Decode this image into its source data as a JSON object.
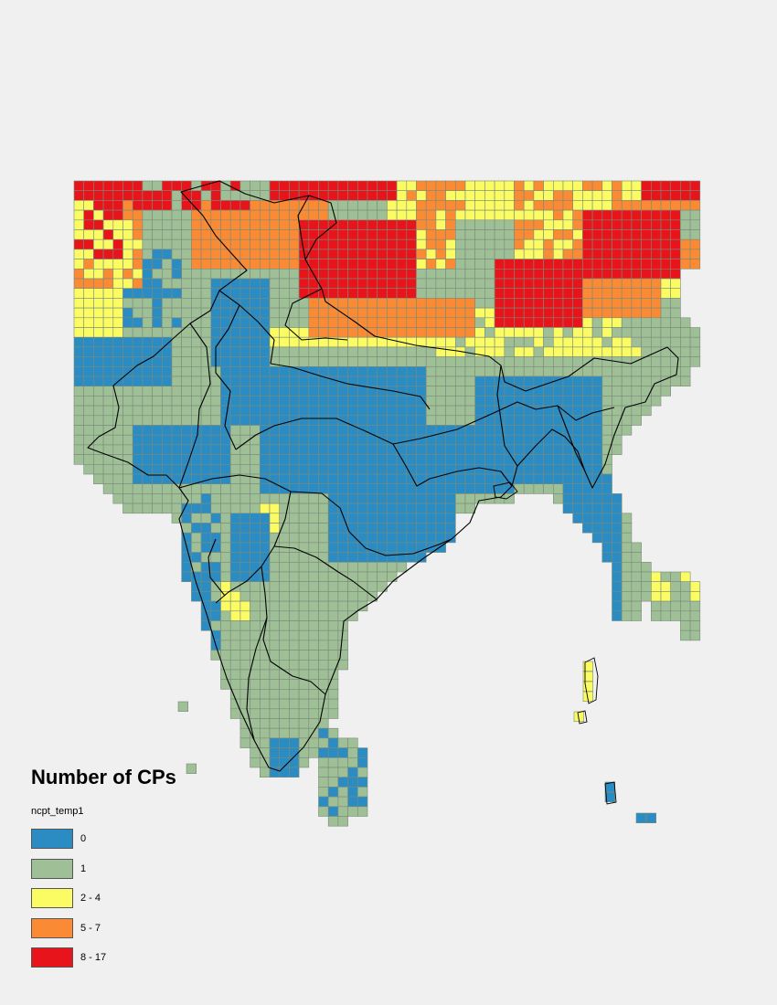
{
  "legend": {
    "title": "Number of CPs",
    "field": "ncpt_temp1",
    "classes": [
      {
        "label": "0",
        "color": "#2b8cc4"
      },
      {
        "label": "1",
        "color": "#9fbf97"
      },
      {
        "label": "2 - 4",
        "color": "#fbfb63"
      },
      {
        "label": "5 - 7",
        "color": "#fa8b34"
      },
      {
        "label": "8 - 17",
        "color": "#e8141b"
      }
    ]
  },
  "colors": {
    "background": "#f0f0f0",
    "grid_stroke": "#7a8a7a",
    "boundary": "#000000"
  },
  "map": {
    "subject": "South Asia gridded map of number of CPs per cell",
    "dominant_classes": {
      "northern_himalaya": "8 - 17",
      "himalaya_foothills": "5 - 7",
      "gangetic_plain_and_central_india": "0",
      "peninsula_and_northwest": "1"
    }
  }
}
